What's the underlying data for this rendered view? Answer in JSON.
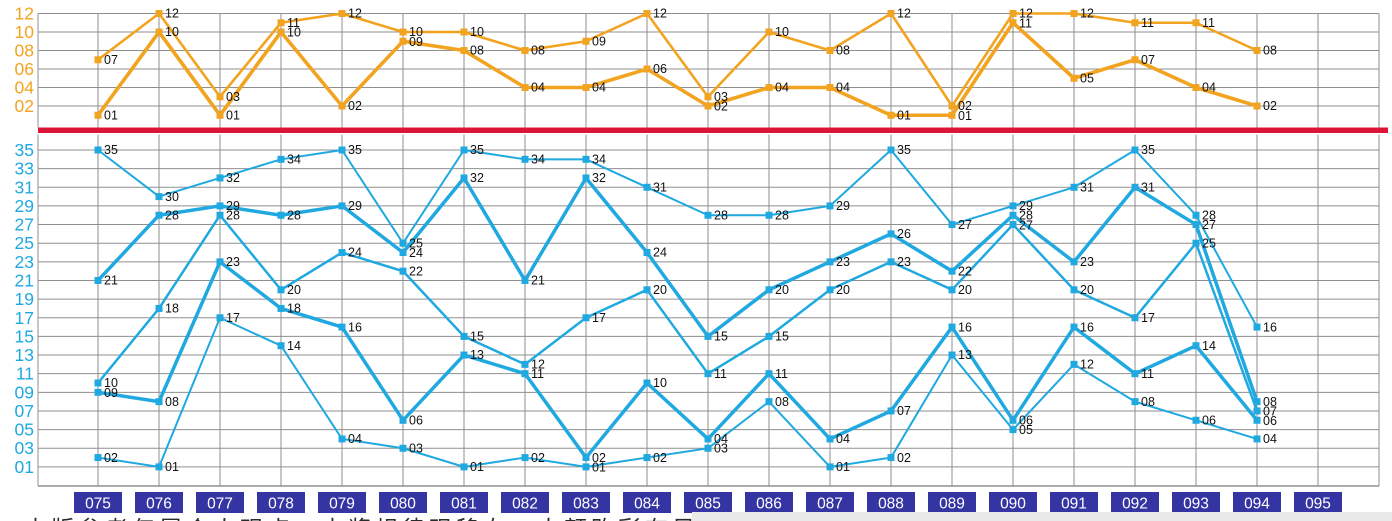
{
  "footer": {
    "disclaimer": "本版参考仅属个人观点，中奖规律现移右，大额购彩有风险，投注需谨慎"
  },
  "colors": {
    "back_zone": "#F2A31F",
    "front_zone": "#1FA9E0",
    "separator": "#DC1438",
    "grid": "#8f8f8f",
    "point_label": "#111111",
    "issue_box_bg": "#3434A3",
    "issue_box_text": "#ffffff",
    "background": "#ffffff",
    "footer_bar": "#e9e9e9"
  },
  "chart_data": {
    "type": "line",
    "title": "",
    "x_categories": [
      "075",
      "076",
      "077",
      "078",
      "079",
      "080",
      "081",
      "082",
      "083",
      "084",
      "085",
      "086",
      "087",
      "088",
      "089",
      "090",
      "091",
      "092",
      "093",
      "094",
      "095"
    ],
    "back_zone": {
      "y_tick_labels": [
        "12",
        "10",
        "08",
        "06",
        "04",
        "02"
      ],
      "value_range": [
        1,
        12
      ]
    },
    "front_zone": {
      "y_tick_labels": [
        "35",
        "33",
        "31",
        "29",
        "27",
        "25",
        "23",
        "21",
        "19",
        "17",
        "15",
        "13",
        "11",
        "09",
        "07",
        "05",
        "03",
        "01"
      ],
      "value_range": [
        1,
        35
      ]
    },
    "draws": [
      {
        "issue": "075",
        "front": [
          35,
          21,
          10,
          9,
          2
        ],
        "back": [
          7,
          1
        ]
      },
      {
        "issue": "076",
        "front": [
          30,
          28,
          18,
          8,
          1
        ],
        "back": [
          12,
          10
        ]
      },
      {
        "issue": "077",
        "front": [
          32,
          29,
          28,
          23,
          17
        ],
        "back": [
          3,
          1
        ]
      },
      {
        "issue": "078",
        "front": [
          34,
          28,
          20,
          18,
          14
        ],
        "back": [
          11,
          10
        ]
      },
      {
        "issue": "079",
        "front": [
          35,
          29,
          24,
          16,
          4
        ],
        "back": [
          12,
          2
        ]
      },
      {
        "issue": "080",
        "front": [
          25,
          24,
          22,
          6,
          3
        ],
        "back": [
          10,
          9
        ]
      },
      {
        "issue": "081",
        "front": [
          35,
          32,
          15,
          13,
          1
        ],
        "back": [
          10,
          8
        ]
      },
      {
        "issue": "082",
        "front": [
          34,
          21,
          12,
          11,
          2
        ],
        "back": [
          8,
          4
        ]
      },
      {
        "issue": "083",
        "front": [
          34,
          32,
          17,
          2,
          1
        ],
        "back": [
          9,
          4
        ]
      },
      {
        "issue": "084",
        "front": [
          31,
          24,
          20,
          10,
          2
        ],
        "back": [
          12,
          6
        ]
      },
      {
        "issue": "085",
        "front": [
          28,
          15,
          11,
          4,
          3
        ],
        "back": [
          3,
          2
        ]
      },
      {
        "issue": "086",
        "front": [
          28,
          20,
          15,
          11,
          8
        ],
        "back": [
          10,
          4
        ]
      },
      {
        "issue": "087",
        "front": [
          29,
          23,
          20,
          4,
          1
        ],
        "back": [
          8,
          4
        ]
      },
      {
        "issue": "088",
        "front": [
          35,
          26,
          23,
          7,
          2
        ],
        "back": [
          12,
          1
        ]
      },
      {
        "issue": "089",
        "front": [
          27,
          22,
          20,
          16,
          13
        ],
        "back": [
          2,
          1
        ]
      },
      {
        "issue": "090",
        "front": [
          29,
          28,
          27,
          6,
          5
        ],
        "back": [
          12,
          11
        ]
      },
      {
        "issue": "091",
        "front": [
          31,
          23,
          20,
          16,
          12
        ],
        "back": [
          12,
          5
        ]
      },
      {
        "issue": "092",
        "front": [
          35,
          31,
          17,
          11,
          8
        ],
        "back": [
          11,
          7
        ]
      },
      {
        "issue": "093",
        "front": [
          28,
          27,
          25,
          14,
          6
        ],
        "back": [
          11,
          4
        ]
      },
      {
        "issue": "094",
        "front": [
          16,
          8,
          7,
          6,
          4
        ],
        "back": [
          8,
          2
        ]
      },
      {
        "issue": "095",
        "front": [],
        "back": []
      }
    ]
  }
}
